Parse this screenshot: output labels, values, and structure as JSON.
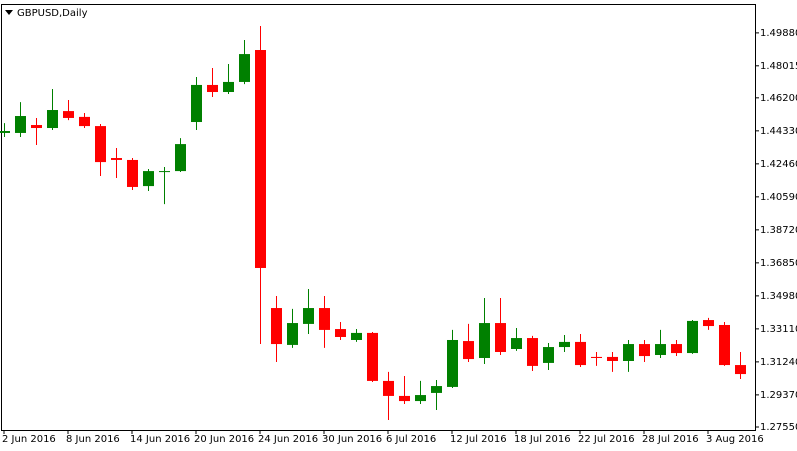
{
  "chart_data": {
    "type": "candlestick",
    "title": "GBPUSD,Daily",
    "categories": [
      "2 Jun 2016",
      null,
      null,
      null,
      "8 Jun 2016",
      null,
      null,
      null,
      "14 Jun 2016",
      null,
      null,
      null,
      "20 Jun 2016",
      null,
      null,
      null,
      "24 Jun 2016",
      null,
      null,
      null,
      "30 Jun 2016",
      null,
      null,
      null,
      "6 Jul 2016",
      null,
      null,
      null,
      "12 Jul 2016",
      null,
      null,
      null,
      "18 Jul 2016",
      null,
      null,
      null,
      "22 Jul 2016",
      null,
      null,
      null,
      "28 Jul 2016",
      null,
      null,
      null,
      "3 Aug 2016",
      null,
      null
    ],
    "open": [
      1.4421,
      1.4421,
      1.4466,
      1.4449,
      1.4545,
      1.4512,
      1.446,
      1.4279,
      1.4268,
      1.412,
      1.42,
      1.4205,
      1.4483,
      1.4693,
      1.4653,
      1.471,
      1.4891,
      1.3429,
      1.322,
      1.3339,
      1.3429,
      1.331,
      1.3248,
      1.3288,
      1.3016,
      1.2931,
      1.2902,
      1.2948,
      1.2982,
      1.3242,
      1.3146,
      1.3344,
      1.3197,
      1.3259,
      1.3118,
      1.3208,
      1.3237,
      1.3152,
      1.3152,
      1.3129,
      1.3225,
      1.3163,
      1.3225,
      1.3174,
      1.3361,
      1.3333,
      1.3106
    ],
    "high": [
      1.4477,
      1.4596,
      1.4506,
      1.467,
      1.4608,
      1.4534,
      1.4472,
      1.4336,
      1.4279,
      1.4217,
      1.4228,
      1.4392,
      1.4738,
      1.4789,
      1.4812,
      1.4948,
      1.5027,
      1.3497,
      1.3424,
      1.3537,
      1.3497,
      1.335,
      1.331,
      1.3293,
      1.3067,
      1.3044,
      1.3016,
      1.3021,
      1.3305,
      1.3339,
      1.3486,
      1.3486,
      1.3316,
      1.3271,
      1.3231,
      1.3276,
      1.3282,
      1.318,
      1.318,
      1.3248,
      1.3248,
      1.3305,
      1.3248,
      1.3361,
      1.3373,
      1.335,
      1.318
    ],
    "low": [
      1.4398,
      1.4398,
      1.4353,
      1.4438,
      1.4494,
      1.4449,
      1.4177,
      1.4166,
      1.4098,
      1.4092,
      1.4018,
      1.42,
      1.4438,
      1.4625,
      1.4642,
      1.4698,
      1.3225,
      1.3123,
      1.3203,
      1.3282,
      1.3203,
      1.3248,
      1.3237,
      1.301,
      1.2795,
      1.2885,
      1.2885,
      1.2851,
      1.2976,
      1.3123,
      1.3112,
      1.3163,
      1.3186,
      1.3072,
      1.3078,
      1.318,
      1.3095,
      1.3101,
      1.3067,
      1.3067,
      1.3123,
      1.3146,
      1.3157,
      1.3169,
      1.3305,
      1.3101,
      1.3027
    ],
    "close": [
      1.4432,
      1.4517,
      1.4449,
      1.4551,
      1.4506,
      1.446,
      1.4256,
      1.4268,
      1.4115,
      1.4205,
      1.4205,
      1.4358,
      1.4693,
      1.4653,
      1.471,
      1.4868,
      1.3656,
      1.3225,
      1.3344,
      1.3429,
      1.3305,
      1.3265,
      1.3288,
      1.3016,
      1.2931,
      1.2902,
      1.2936,
      1.2987,
      1.3248,
      1.314,
      1.3344,
      1.318,
      1.3259,
      1.3101,
      1.3208,
      1.3237,
      1.3106,
      1.3146,
      1.3129,
      1.3225,
      1.3157,
      1.3225,
      1.3174,
      1.3356,
      1.3327,
      1.3106,
      1.3055
    ],
    "up_color": "#008000",
    "down_color": "#ff0000",
    "ylim": [
      1.2738,
      1.5146
    ],
    "yticks": [
      {
        "value": 1.2755,
        "label": "1.27550"
      },
      {
        "value": 1.2937,
        "label": "1.29370"
      },
      {
        "value": 1.3124,
        "label": "1.31240"
      },
      {
        "value": 1.3311,
        "label": "1.33110"
      },
      {
        "value": 1.3498,
        "label": "1.34980"
      },
      {
        "value": 1.3685,
        "label": "1.36850"
      },
      {
        "value": 1.3872,
        "label": "1.38720"
      },
      {
        "value": 1.4059,
        "label": "1.40590"
      },
      {
        "value": 1.4246,
        "label": "1.42460"
      },
      {
        "value": 1.4433,
        "label": "1.44330"
      },
      {
        "value": 1.462,
        "label": "1.46200"
      },
      1.48015,
      {
        "value": 1.4988,
        "label": "1.49880"
      }
    ]
  }
}
